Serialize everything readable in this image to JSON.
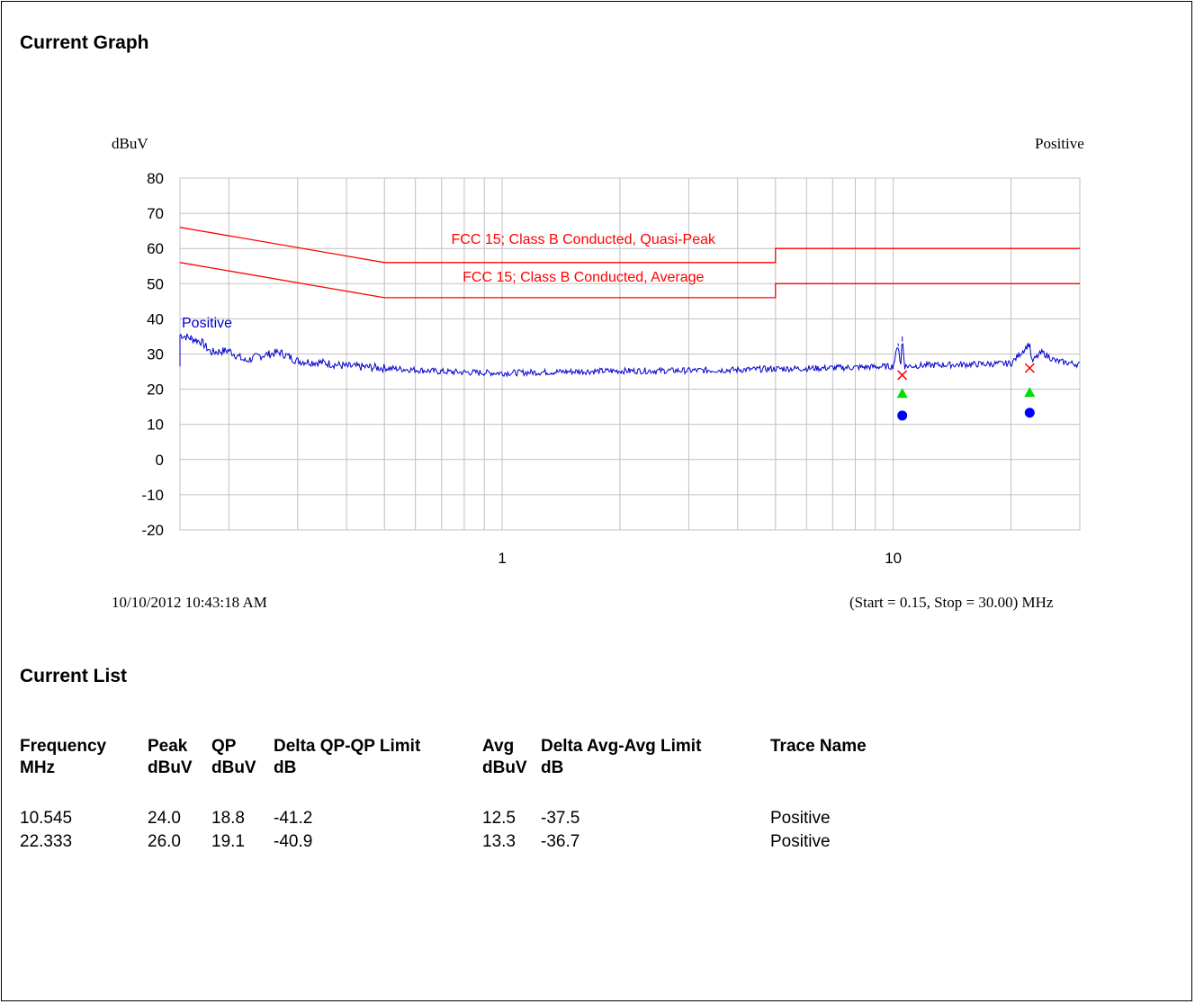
{
  "sections": {
    "graph_title": "Current Graph",
    "list_title": "Current List"
  },
  "chart_meta": {
    "timestamp": "10/10/2012 10:43:18 AM",
    "range_text": "(Start = 0.15, Stop = 30.00) MHz",
    "top_right_label": "Positive"
  },
  "chart_data": {
    "type": "line",
    "ylabel": "dBuV",
    "x_scale": "log",
    "xlim": [
      0.15,
      30
    ],
    "ylim": [
      -20,
      80
    ],
    "y_ticks": [
      80,
      70,
      60,
      50,
      40,
      30,
      20,
      10,
      0,
      -10,
      -20
    ],
    "x_tick_labels": [
      {
        "value": 1,
        "label": "1"
      },
      {
        "value": 10,
        "label": "10"
      }
    ],
    "grid": true,
    "colors": {
      "limit": "#ff0000",
      "trace": "#0000cc",
      "qp_marker": "#00dd00",
      "avg_marker": "#0000ff",
      "peak_marker": "#ff0000"
    },
    "limits": [
      {
        "name": "FCC 15; Class B Conducted, Quasi-Peak",
        "points": [
          [
            0.15,
            66
          ],
          [
            0.5,
            56
          ],
          [
            5,
            56
          ],
          [
            5,
            60
          ],
          [
            30,
            60
          ]
        ]
      },
      {
        "name": "FCC 15; Class B Conducted, Average",
        "points": [
          [
            0.15,
            56
          ],
          [
            0.5,
            46
          ],
          [
            5,
            46
          ],
          [
            5,
            50
          ],
          [
            30,
            50
          ]
        ]
      }
    ],
    "trace": {
      "name": "Positive",
      "points": [
        [
          0.15,
          35.5
        ],
        [
          0.16,
          34.5
        ],
        [
          0.17,
          33.5
        ],
        [
          0.18,
          30.5
        ],
        [
          0.2,
          31
        ],
        [
          0.22,
          28
        ],
        [
          0.24,
          29.5
        ],
        [
          0.27,
          30.5
        ],
        [
          0.3,
          28
        ],
        [
          0.35,
          27.5
        ],
        [
          0.4,
          26.5
        ],
        [
          0.45,
          26.3
        ],
        [
          0.5,
          26
        ],
        [
          0.6,
          25.5
        ],
        [
          0.7,
          25
        ],
        [
          0.8,
          24.8
        ],
        [
          1,
          24.6
        ],
        [
          1.5,
          25
        ],
        [
          2,
          25.2
        ],
        [
          3,
          25.3
        ],
        [
          4,
          25.5
        ],
        [
          5,
          25.8
        ],
        [
          6,
          25.9
        ],
        [
          8,
          26.2
        ],
        [
          10,
          26.5
        ],
        [
          10.3,
          33
        ],
        [
          10.45,
          26
        ],
        [
          10.545,
          35
        ],
        [
          10.7,
          26.5
        ],
        [
          12,
          26.8
        ],
        [
          15,
          27
        ],
        [
          18,
          27.2
        ],
        [
          20,
          27.3
        ],
        [
          22.333,
          33
        ],
        [
          22.6,
          27.8
        ],
        [
          24,
          30.5
        ],
        [
          26,
          28
        ],
        [
          28,
          27.5
        ],
        [
          30,
          27
        ]
      ]
    },
    "markers": [
      {
        "freq": 10.545,
        "peak": 24.0,
        "qp": 18.8,
        "avg": 12.5
      },
      {
        "freq": 22.333,
        "peak": 26.0,
        "qp": 19.1,
        "avg": 13.3
      }
    ]
  },
  "table": {
    "headers": [
      {
        "line1": "Frequency",
        "line2": "MHz"
      },
      {
        "line1": "Peak",
        "line2": "dBuV"
      },
      {
        "line1": "QP",
        "line2": "dBuV"
      },
      {
        "line1": "Delta QP-QP Limit",
        "line2": "dB"
      },
      {
        "line1": "Avg",
        "line2": "dBuV"
      },
      {
        "line1": "Delta Avg-Avg Limit",
        "line2": "dB"
      },
      {
        "line1": "Trace Name",
        "line2": ""
      }
    ],
    "rows": [
      [
        "10.545",
        "24.0",
        "18.8",
        "-41.2",
        "12.5",
        "-37.5",
        "Positive"
      ],
      [
        "22.333",
        "26.0",
        "19.1",
        "-40.9",
        "13.3",
        "-36.7",
        "Positive"
      ]
    ]
  }
}
